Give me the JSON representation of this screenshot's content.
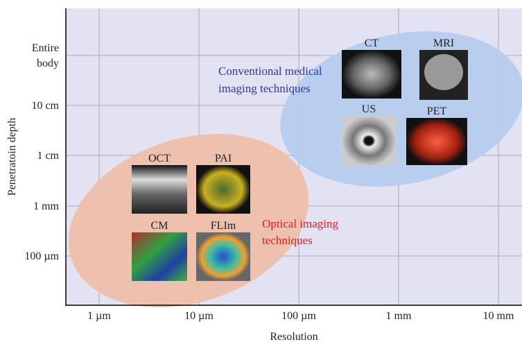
{
  "x_axis": {
    "label": "Resolution",
    "ticks": [
      "1 µm",
      "10 µm",
      "100 µm",
      "1 mm",
      "10 mm"
    ]
  },
  "y_axis": {
    "label": "Penetratoin depth",
    "ticks": [
      "100 µm",
      "1 mm",
      "1 cm",
      "10 cm",
      [
        "Entire",
        "body"
      ]
    ]
  },
  "groups": [
    {
      "label": [
        "Conventional medical",
        "imaging techniques"
      ],
      "modalities": [
        "CT",
        "MRI",
        "US",
        "PET"
      ]
    },
    {
      "label": [
        "Optical imaging",
        "techniques"
      ],
      "modalities": [
        "OCT",
        "PAI",
        "CM",
        "FLIm"
      ]
    }
  ]
}
